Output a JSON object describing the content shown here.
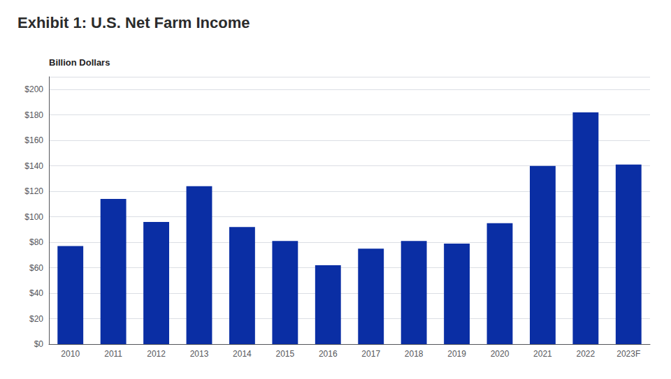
{
  "chart_data": {
    "type": "bar",
    "title": "Exhibit 1: U.S. Net Farm Income",
    "ylabel": "Billion Dollars",
    "categories": [
      "2010",
      "2011",
      "2012",
      "2013",
      "2014",
      "2015",
      "2016",
      "2017",
      "2018",
      "2019",
      "2020",
      "2021",
      "2022",
      "2023F"
    ],
    "values": [
      77,
      114,
      96,
      124,
      92,
      81,
      62,
      75,
      81,
      79,
      95,
      140,
      182,
      141
    ],
    "color": "#0A2EA4",
    "ylim": [
      0,
      210
    ],
    "yticks": [
      {
        "value": 0,
        "label": "$0"
      },
      {
        "value": 20,
        "label": "$20"
      },
      {
        "value": 40,
        "label": "$40"
      },
      {
        "value": 60,
        "label": "$60"
      },
      {
        "value": 80,
        "label": "$80"
      },
      {
        "value": 100,
        "label": "$100"
      },
      {
        "value": 120,
        "label": "$120"
      },
      {
        "value": 140,
        "label": "$140"
      },
      {
        "value": 160,
        "label": "$160"
      },
      {
        "value": 180,
        "label": "$180"
      },
      {
        "value": 200,
        "label": "$200"
      }
    ],
    "grid": true
  }
}
